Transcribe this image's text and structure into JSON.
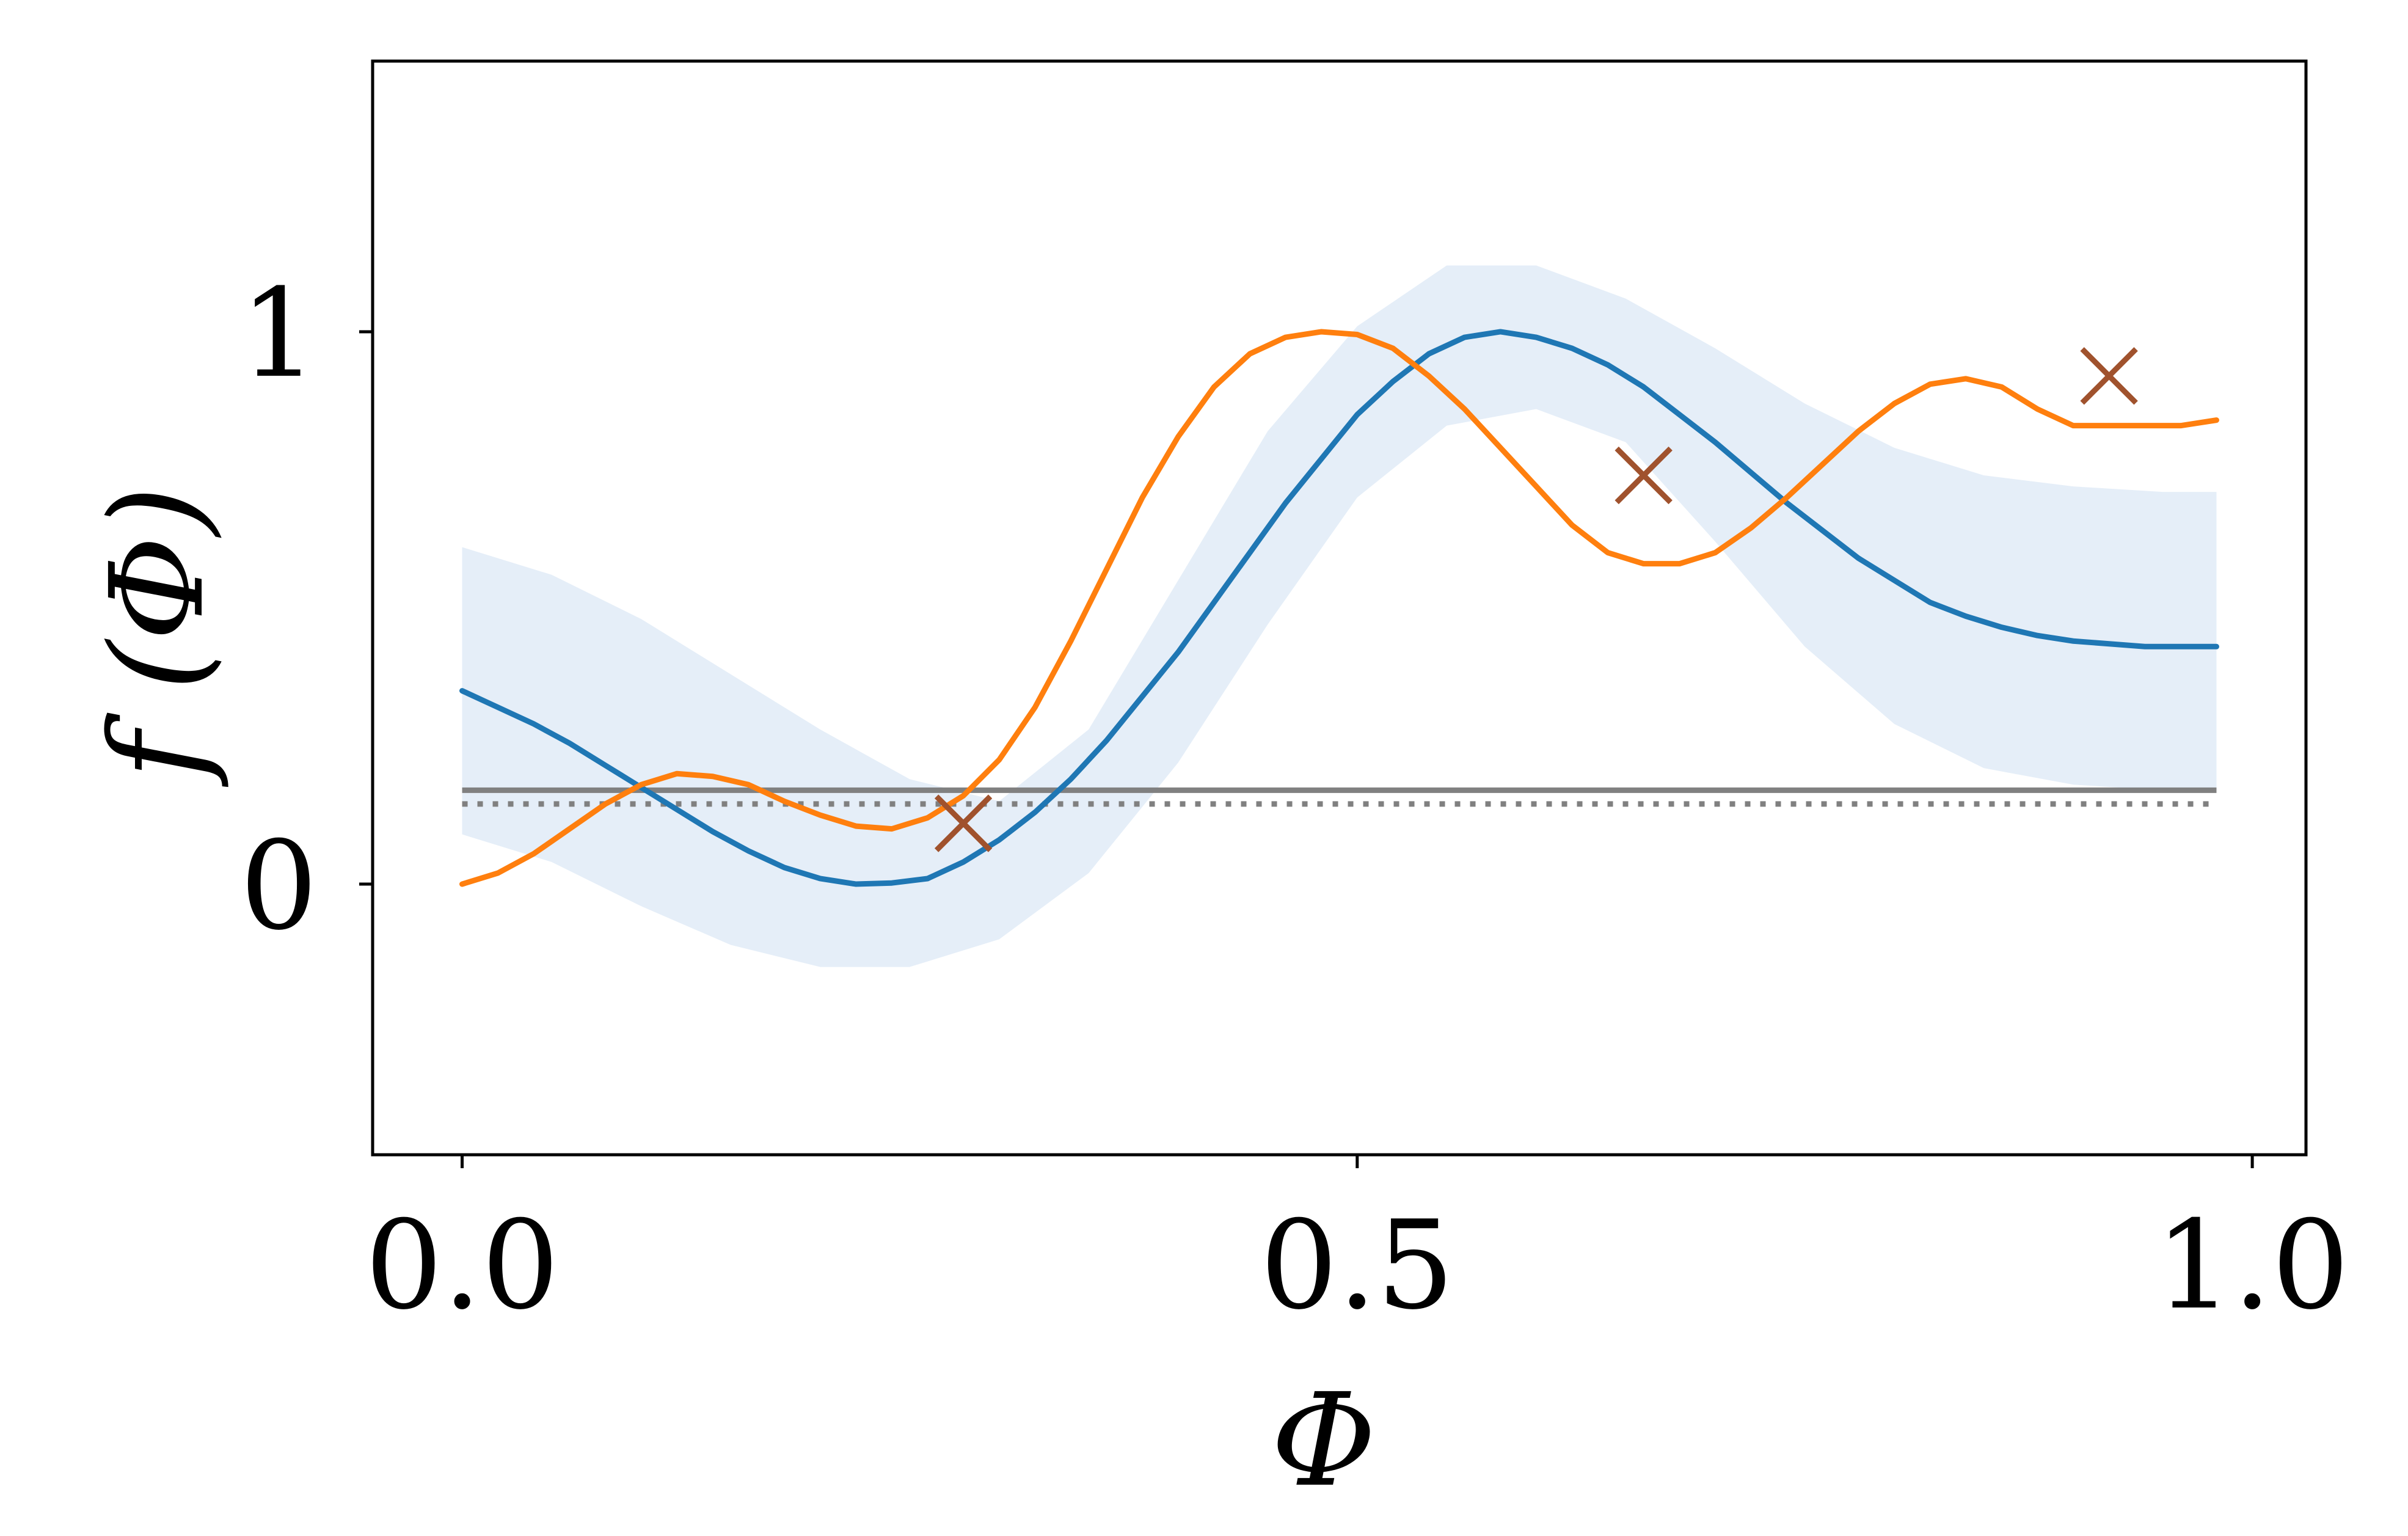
{
  "chart_data": {
    "type": "line",
    "xlabel": "Φ",
    "ylabel": "f (Φ)",
    "xlim": [
      -0.05,
      1.03
    ],
    "ylim": [
      -0.49,
      1.49
    ],
    "xticks": [
      {
        "value": 0.0,
        "label": "0.0"
      },
      {
        "value": 0.5,
        "label": "0.5"
      },
      {
        "value": 1.0,
        "label": "1.0"
      }
    ],
    "yticks": [
      {
        "value": 0,
        "label": "0"
      },
      {
        "value": 1,
        "label": "1"
      }
    ],
    "grid": false,
    "colors": {
      "mean": "#1f77b4",
      "band": "#dce8f5",
      "true_function": "#ff7f0e",
      "threshold": "#808080",
      "observations": "#a0522d"
    },
    "band": {
      "x": [
        0.0,
        0.05,
        0.1,
        0.15,
        0.2,
        0.25,
        0.3,
        0.35,
        0.4,
        0.45,
        0.5,
        0.55,
        0.6,
        0.65,
        0.7,
        0.75,
        0.8,
        0.85,
        0.9,
        0.95,
        0.98
      ],
      "upper": [
        0.61,
        0.56,
        0.48,
        0.38,
        0.28,
        0.19,
        0.15,
        0.28,
        0.55,
        0.82,
        1.01,
        1.12,
        1.12,
        1.06,
        0.97,
        0.87,
        0.79,
        0.74,
        0.72,
        0.71,
        0.71
      ],
      "lower": [
        0.09,
        0.04,
        -0.04,
        -0.11,
        -0.15,
        -0.15,
        -0.1,
        0.02,
        0.22,
        0.47,
        0.7,
        0.83,
        0.86,
        0.8,
        0.62,
        0.43,
        0.29,
        0.21,
        0.18,
        0.17,
        0.17
      ]
    },
    "series": [
      {
        "x": [
          0.0,
          0.02,
          0.04,
          0.06,
          0.08,
          0.1,
          0.12,
          0.14,
          0.16,
          0.18,
          0.2,
          0.22,
          0.24,
          0.26,
          0.28,
          0.3,
          0.32,
          0.34,
          0.36,
          0.38,
          0.4,
          0.42,
          0.44,
          0.46,
          0.48,
          0.5,
          0.52,
          0.54,
          0.56,
          0.58,
          0.6,
          0.62,
          0.64,
          0.66,
          0.68,
          0.7,
          0.72,
          0.74,
          0.76,
          0.78,
          0.8,
          0.82,
          0.84,
          0.86,
          0.88,
          0.9,
          0.92,
          0.94,
          0.96,
          0.98
        ],
        "values": [
          0.35,
          0.32,
          0.29,
          0.255,
          0.215,
          0.175,
          0.135,
          0.095,
          0.06,
          0.03,
          0.01,
          0.0,
          0.002,
          0.01,
          0.04,
          0.08,
          0.13,
          0.19,
          0.26,
          0.34,
          0.42,
          0.51,
          0.6,
          0.69,
          0.77,
          0.85,
          0.91,
          0.96,
          0.99,
          1.0,
          0.99,
          0.97,
          0.94,
          0.9,
          0.85,
          0.8,
          0.745,
          0.69,
          0.64,
          0.59,
          0.55,
          0.51,
          0.485,
          0.465,
          0.45,
          0.44,
          0.435,
          0.43,
          0.43,
          0.43
        ]
      },
      {
        "x": [
          0.0,
          0.02,
          0.04,
          0.06,
          0.08,
          0.1,
          0.12,
          0.14,
          0.16,
          0.18,
          0.2,
          0.22,
          0.24,
          0.26,
          0.28,
          0.3,
          0.32,
          0.34,
          0.36,
          0.38,
          0.4,
          0.42,
          0.44,
          0.46,
          0.48,
          0.5,
          0.52,
          0.54,
          0.56,
          0.58,
          0.6,
          0.62,
          0.64,
          0.66,
          0.68,
          0.7,
          0.72,
          0.74,
          0.76,
          0.78,
          0.8,
          0.82,
          0.84,
          0.86,
          0.88,
          0.9,
          0.92,
          0.94,
          0.96,
          0.98
        ],
        "values": [
          0.0,
          0.02,
          0.055,
          0.1,
          0.145,
          0.18,
          0.2,
          0.195,
          0.18,
          0.15,
          0.125,
          0.105,
          0.1,
          0.12,
          0.16,
          0.225,
          0.32,
          0.44,
          0.57,
          0.7,
          0.81,
          0.9,
          0.96,
          0.99,
          1.0,
          0.995,
          0.97,
          0.92,
          0.86,
          0.79,
          0.72,
          0.65,
          0.6,
          0.58,
          0.58,
          0.6,
          0.645,
          0.7,
          0.76,
          0.82,
          0.87,
          0.905,
          0.915,
          0.9,
          0.86,
          0.83,
          0.83,
          0.83,
          0.83,
          0.84
        ]
      }
    ],
    "threshold_solid": 0.17,
    "threshold_dotted": 0.145,
    "observations": [
      {
        "x": 0.28,
        "y": 0.11
      },
      {
        "x": 0.66,
        "y": 0.74
      },
      {
        "x": 0.92,
        "y": 0.92
      }
    ]
  }
}
